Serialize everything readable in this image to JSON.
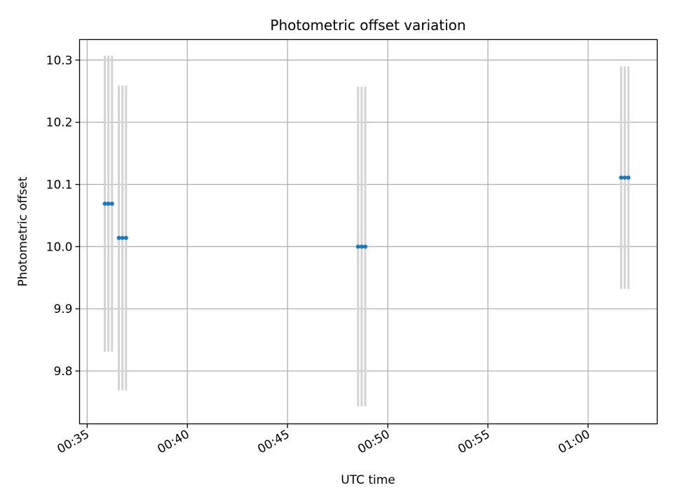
{
  "chart_data": {
    "type": "scatter",
    "title": "Photometric offset variation",
    "xlabel": "UTC time",
    "ylabel": "Photometric offset",
    "x_unit": "minutes",
    "x_ticks": [
      {
        "value": 35,
        "label": "00:35"
      },
      {
        "value": 40,
        "label": "00:40"
      },
      {
        "value": 45,
        "label": "00:45"
      },
      {
        "value": 50,
        "label": "00:50"
      },
      {
        "value": 55,
        "label": "00:55"
      },
      {
        "value": 60,
        "label": "01:00"
      }
    ],
    "y_ticks": [
      {
        "value": 9.8,
        "label": "9.8"
      },
      {
        "value": 9.9,
        "label": "9.9"
      },
      {
        "value": 10.0,
        "label": "10.0"
      },
      {
        "value": 10.1,
        "label": "10.1"
      },
      {
        "value": 10.2,
        "label": "10.2"
      },
      {
        "value": 10.3,
        "label": "10.3"
      }
    ],
    "xlim": [
      34.62,
      63.45
    ],
    "ylim": [
      9.715,
      10.333
    ],
    "grid": true,
    "marker_color": "#1f77b4",
    "errorbar_color": "#d3d3d3",
    "points": [
      {
        "x": 35.88,
        "y": 10.069,
        "err": 0.238
      },
      {
        "x": 36.06,
        "y": 10.069,
        "err": 0.238
      },
      {
        "x": 36.24,
        "y": 10.069,
        "err": 0.238
      },
      {
        "x": 36.58,
        "y": 10.014,
        "err": 0.245
      },
      {
        "x": 36.76,
        "y": 10.014,
        "err": 0.245
      },
      {
        "x": 36.94,
        "y": 10.014,
        "err": 0.245
      },
      {
        "x": 48.52,
        "y": 10.0,
        "err": 0.257
      },
      {
        "x": 48.7,
        "y": 10.0,
        "err": 0.257
      },
      {
        "x": 48.88,
        "y": 10.0,
        "err": 0.257
      },
      {
        "x": 61.65,
        "y": 10.111,
        "err": 0.179
      },
      {
        "x": 61.83,
        "y": 10.111,
        "err": 0.179
      },
      {
        "x": 62.01,
        "y": 10.111,
        "err": 0.179
      }
    ]
  }
}
